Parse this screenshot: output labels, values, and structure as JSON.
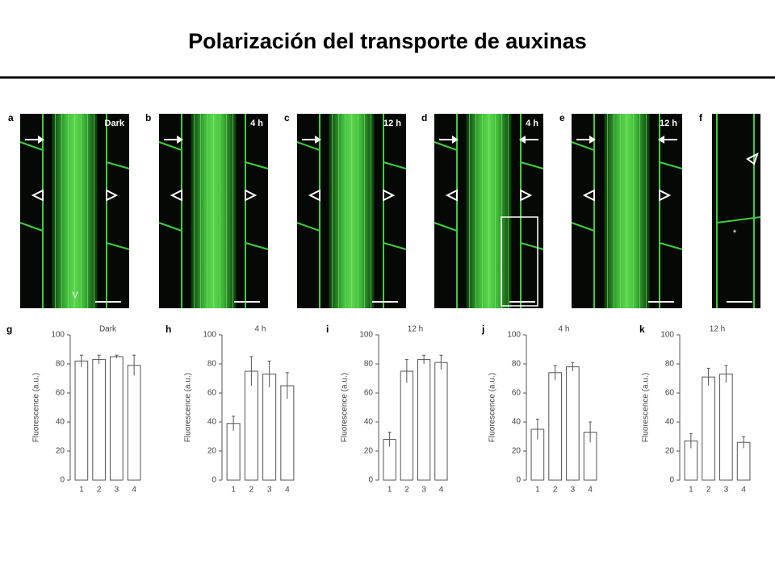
{
  "title": "Polarización del transporte de auxinas",
  "micrographs": [
    {
      "letter": "a",
      "label": "Dark",
      "marker": "V"
    },
    {
      "letter": "b",
      "label": "4 h"
    },
    {
      "letter": "c",
      "label": "12 h"
    },
    {
      "letter": "d",
      "label": "4 h"
    },
    {
      "letter": "e",
      "label": "12 h"
    },
    {
      "letter": "f",
      "marker": "*"
    }
  ],
  "chart_data": [
    {
      "type": "bar",
      "letter": "g",
      "title": "Dark",
      "ylabel": "Fluorescence (a.u.)",
      "categories": [
        "1",
        "2",
        "3",
        "4"
      ],
      "values": [
        82,
        83,
        85,
        79
      ],
      "errors": [
        4,
        3,
        1,
        7
      ],
      "ylim": [
        0,
        100
      ],
      "yticks": [
        0,
        20,
        40,
        60,
        80,
        100
      ],
      "color": "#ffffff"
    },
    {
      "type": "bar",
      "letter": "h",
      "title": "4 h",
      "ylabel": "Fluorescence (a.u.)",
      "categories": [
        "1",
        "2",
        "3",
        "4"
      ],
      "values": [
        39,
        75,
        73,
        65
      ],
      "errors": [
        5,
        10,
        9,
        9
      ],
      "ylim": [
        0,
        100
      ],
      "yticks": [
        0,
        20,
        40,
        60,
        80,
        100
      ],
      "color": "#ffffff"
    },
    {
      "type": "bar",
      "letter": "i",
      "title": "12 h",
      "ylabel": "Fluorescence (a.u.)",
      "categories": [
        "1",
        "2",
        "3",
        "4"
      ],
      "values": [
        28,
        75,
        83,
        81
      ],
      "errors": [
        5,
        8,
        3,
        5
      ],
      "ylim": [
        0,
        100
      ],
      "yticks": [
        0,
        20,
        40,
        60,
        80,
        100
      ],
      "color": "#ffffff"
    },
    {
      "type": "bar",
      "letter": "j",
      "title": "4 h",
      "ylabel": "Fluorescence (a.u.)",
      "categories": [
        "1",
        "2",
        "3",
        "4"
      ],
      "values": [
        35,
        74,
        78,
        33
      ],
      "errors": [
        7,
        5,
        3,
        7
      ],
      "ylim": [
        0,
        100
      ],
      "yticks": [
        0,
        20,
        40,
        60,
        80,
        100
      ],
      "color": "#ffffff"
    },
    {
      "type": "bar",
      "letter": "k",
      "title": "12 h",
      "ylabel": "Fluorescence (a.u.)",
      "categories": [
        "1",
        "2",
        "3",
        "4"
      ],
      "values": [
        27,
        71,
        73,
        26
      ],
      "errors": [
        5,
        6,
        6,
        4
      ],
      "ylim": [
        0,
        100
      ],
      "yticks": [
        0,
        20,
        40,
        60,
        80,
        100
      ],
      "color": "#ffffff"
    }
  ]
}
